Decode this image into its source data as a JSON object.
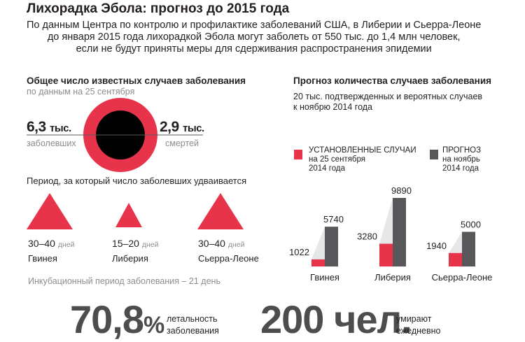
{
  "title": "Лихорадка Эбола: прогноз до 2015 года",
  "intro": [
    "По данным Центра по контролю и профилактике заболеваний США, в Либерии и Сьерра-Леоне",
    "до января 2015 года лихорадкой Эбола могут заболеть от 550 тыс. до 1,4 млн человек,",
    "если не будут приняты меры для сдерживания распространения эпидемии"
  ],
  "known": {
    "title": "Общее число известных случаев заболевания",
    "date": "по данным на 25 сентября",
    "sick_value": "6,3",
    "sick_unit": "тыс.",
    "sick_label": "заболевших",
    "dead_value": "2,9",
    "dead_unit": "тыс.",
    "dead_label": "смертей",
    "sick_thousands": 6.3,
    "dead_thousands": 2.9,
    "colors": {
      "sick": "#e8344b",
      "dead": "#000000"
    }
  },
  "doubling": {
    "title": "Период, за который число заболевших удваивается",
    "unit": "дней",
    "items": [
      {
        "range": "30–40",
        "country": "Гвинея"
      },
      {
        "range": "15–20",
        "country": "Либерия"
      },
      {
        "range": "30–40",
        "country": "Сьерра-Леоне"
      }
    ],
    "incubation": "Инкубационный период заболевания – 21 день"
  },
  "forecast": {
    "title": "Прогноз количества случаев заболевания",
    "subtitle": [
      "20 тыс. подтвержденных и вероятных случаев",
      "к ноябрю 2014 года"
    ],
    "legend": [
      {
        "lines": [
          "УСТАНОВЛЕННЫЕ СЛУЧАИ",
          "на 25 сентября",
          "2014 года"
        ],
        "color": "#e8344b"
      },
      {
        "lines": [
          "ПРОГНОЗ",
          "на ноябрь",
          "2014 года"
        ],
        "color": "#58585a"
      }
    ]
  },
  "chart_data": {
    "type": "bar",
    "title": "Прогноз количества случаев заболевания",
    "categories": [
      "Гвинея",
      "Либерия",
      "Сьерра-Леоне"
    ],
    "series": [
      {
        "name": "Установленные случаи на 25 сентября 2014 года",
        "values": [
          1022,
          3280,
          1940
        ],
        "color": "#e8344b"
      },
      {
        "name": "Прогноз на ноябрь 2014 года",
        "values": [
          5740,
          9890,
          5000
        ],
        "color": "#58585a"
      }
    ],
    "labels": [
      [
        "1022",
        "5740"
      ],
      [
        "3280",
        "9890"
      ],
      [
        "1940",
        "5000"
      ]
    ],
    "ylim": [
      0,
      9890
    ]
  },
  "stats": {
    "lethality_value": "70,8",
    "lethality_unit": "%",
    "lethality_caption": [
      "летальность",
      "заболевания"
    ],
    "daily_value": "200 чел.",
    "daily_caption": [
      "умирают",
      "ежедневно"
    ]
  }
}
